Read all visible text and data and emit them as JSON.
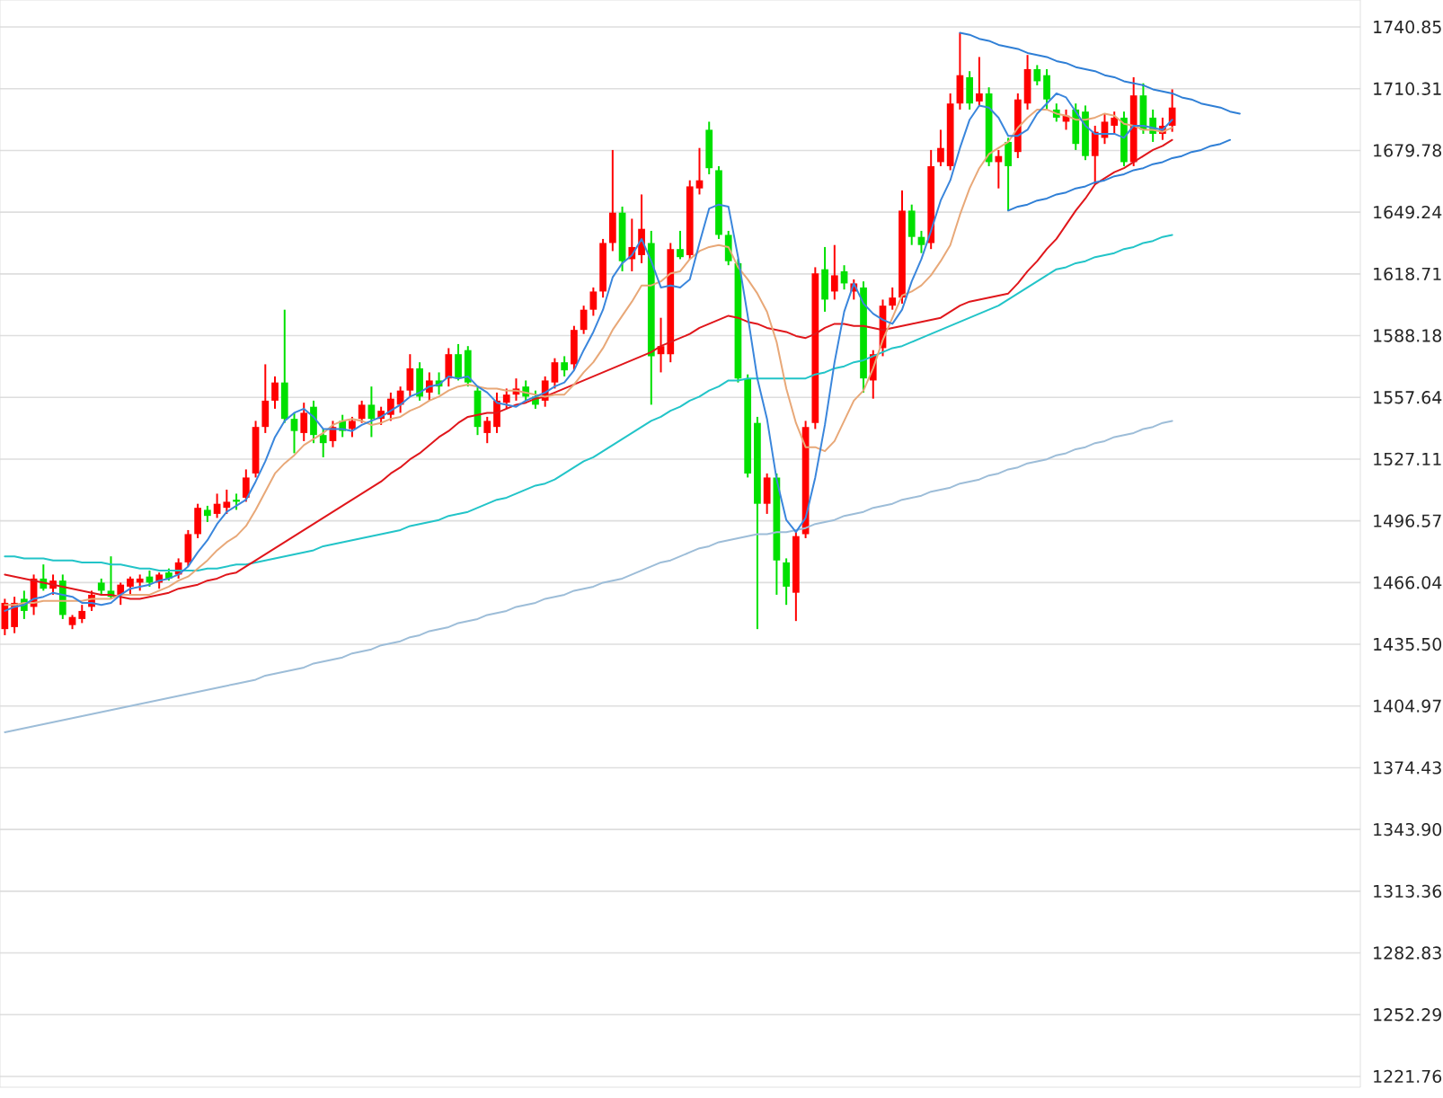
{
  "chart_data": {
    "type": "candlestick",
    "categories": [
      null,
      null,
      null,
      null,
      null,
      null,
      null,
      null,
      null,
      null,
      null,
      null,
      null,
      null,
      null,
      null,
      null,
      null,
      null,
      null,
      null,
      null,
      null,
      null,
      null,
      null,
      null,
      null,
      null,
      null,
      null,
      null,
      null,
      null,
      null,
      null,
      null,
      null,
      null,
      null,
      null,
      null,
      null,
      null,
      null,
      null,
      null,
      null,
      null,
      null,
      null,
      null,
      null,
      null,
      null,
      null,
      null,
      null,
      null,
      null,
      null,
      null,
      null,
      null,
      null,
      null,
      null,
      null,
      null,
      null,
      null,
      null,
      null,
      null,
      null,
      null,
      null,
      null,
      null,
      null,
      null,
      null,
      null,
      null,
      null,
      null,
      null,
      null,
      null,
      null,
      null,
      null,
      null,
      null,
      null,
      null,
      null,
      null,
      null,
      null,
      null,
      null,
      null,
      null,
      null,
      null,
      null,
      null,
      null,
      null,
      null,
      null,
      null,
      null,
      null,
      null,
      null,
      null,
      null,
      null,
      null,
      null,
      null,
      null,
      null,
      null,
      null,
      null,
      null,
      null,
      null,
      null,
      null,
      null,
      null,
      null,
      null,
      null,
      null,
      null,
      null
    ],
    "ohlc": [
      [
        1443,
        1458,
        1440,
        1456
      ],
      [
        1444,
        1459,
        1441,
        1456
      ],
      [
        1458,
        1462,
        1448,
        1452
      ],
      [
        1454,
        1470,
        1450,
        1468
      ],
      [
        1468,
        1475,
        1462,
        1463
      ],
      [
        1463,
        1470,
        1460,
        1467
      ],
      [
        1467,
        1470,
        1448,
        1450
      ],
      [
        1445,
        1450,
        1443,
        1449
      ],
      [
        1448,
        1455,
        1446,
        1452
      ],
      [
        1454,
        1462,
        1452,
        1460
      ],
      [
        1466,
        1468,
        1460,
        1462
      ],
      [
        1462,
        1479,
        1458,
        1459
      ],
      [
        1460,
        1466,
        1455,
        1465
      ],
      [
        1464,
        1469,
        1460,
        1468
      ],
      [
        1466,
        1470,
        1462,
        1468
      ],
      [
        1469,
        1472,
        1464,
        1466
      ],
      [
        1466,
        1471,
        1463,
        1470
      ],
      [
        1471,
        1473,
        1467,
        1468
      ],
      [
        1470,
        1478,
        1468,
        1476
      ],
      [
        1476,
        1492,
        1474,
        1490
      ],
      [
        1490,
        1505,
        1488,
        1503
      ],
      [
        1502,
        1504,
        1496,
        1499
      ],
      [
        1500,
        1510,
        1498,
        1505
      ],
      [
        1503,
        1512,
        1500,
        1506
      ],
      [
        1507,
        1510,
        1502,
        1506
      ],
      [
        1508,
        1522,
        1506,
        1518
      ],
      [
        1520,
        1546,
        1518,
        1543
      ],
      [
        1543,
        1574,
        1540,
        1556
      ],
      [
        1556,
        1568,
        1552,
        1565
      ],
      [
        1565,
        1601,
        1545,
        1547
      ],
      [
        1547,
        1550,
        1530,
        1541
      ],
      [
        1540,
        1555,
        1536,
        1550
      ],
      [
        1553,
        1556,
        1535,
        1539
      ],
      [
        1539,
        1542,
        1528,
        1535
      ],
      [
        1536,
        1546,
        1533,
        1543
      ],
      [
        1546,
        1549,
        1538,
        1541
      ],
      [
        1542,
        1548,
        1538,
        1546
      ],
      [
        1547,
        1556,
        1545,
        1554
      ],
      [
        1554,
        1563,
        1538,
        1547
      ],
      [
        1547,
        1553,
        1544,
        1551
      ],
      [
        1549,
        1560,
        1546,
        1557
      ],
      [
        1554,
        1563,
        1550,
        1561
      ],
      [
        1561,
        1579,
        1558,
        1572
      ],
      [
        1572,
        1575,
        1556,
        1558
      ],
      [
        1560,
        1570,
        1556,
        1566
      ],
      [
        1566,
        1570,
        1559,
        1563
      ],
      [
        1567,
        1582,
        1563,
        1579
      ],
      [
        1579,
        1584,
        1566,
        1567
      ],
      [
        1581,
        1583,
        1563,
        1565
      ],
      [
        1561,
        1563,
        1539,
        1543
      ],
      [
        1540,
        1548,
        1535,
        1546
      ],
      [
        1543,
        1560,
        1540,
        1556
      ],
      [
        1555,
        1562,
        1552,
        1559
      ],
      [
        1559,
        1567,
        1556,
        1562
      ],
      [
        1563,
        1566,
        1556,
        1558
      ],
      [
        1558,
        1561,
        1552,
        1554
      ],
      [
        1556,
        1568,
        1553,
        1566
      ],
      [
        1565,
        1577,
        1562,
        1575
      ],
      [
        1575,
        1578,
        1568,
        1571
      ],
      [
        1574,
        1593,
        1571,
        1591
      ],
      [
        1591,
        1603,
        1589,
        1601
      ],
      [
        1601,
        1612,
        1598,
        1610
      ],
      [
        1610,
        1636,
        1607,
        1634
      ],
      [
        1634,
        1680,
        1630,
        1649
      ],
      [
        1649,
        1652,
        1620,
        1625
      ],
      [
        1626,
        1646,
        1620,
        1632
      ],
      [
        1628,
        1658,
        1624,
        1641
      ],
      [
        1634,
        1640,
        1554,
        1578
      ],
      [
        1579,
        1597,
        1570,
        1583
      ],
      [
        1579,
        1634,
        1575,
        1631
      ],
      [
        1631,
        1640,
        1626,
        1627
      ],
      [
        1628,
        1665,
        1626,
        1662
      ],
      [
        1661,
        1681,
        1658,
        1665
      ],
      [
        1690,
        1694,
        1668,
        1671
      ],
      [
        1670,
        1672,
        1636,
        1638
      ],
      [
        1638,
        1640,
        1623,
        1625
      ],
      [
        1624,
        1626,
        1565,
        1567
      ],
      [
        1567,
        1569,
        1518,
        1520
      ],
      [
        1545,
        1548,
        1443,
        1505
      ],
      [
        1505,
        1520,
        1500,
        1518
      ],
      [
        1518,
        1520,
        1460,
        1477
      ],
      [
        1476,
        1478,
        1455,
        1464
      ],
      [
        1461,
        1492,
        1447,
        1489
      ],
      [
        1490,
        1546,
        1488,
        1543
      ],
      [
        1545,
        1622,
        1542,
        1619
      ],
      [
        1621,
        1632,
        1600,
        1606
      ],
      [
        1610,
        1633,
        1606,
        1618
      ],
      [
        1620,
        1623,
        1611,
        1614
      ],
      [
        1610,
        1616,
        1606,
        1614
      ],
      [
        1612,
        1615,
        1560,
        1567
      ],
      [
        1566,
        1581,
        1557,
        1579
      ],
      [
        1582,
        1606,
        1578,
        1603
      ],
      [
        1603,
        1612,
        1601,
        1607
      ],
      [
        1607,
        1660,
        1604,
        1650
      ],
      [
        1650,
        1653,
        1633,
        1637
      ],
      [
        1637,
        1640,
        1629,
        1633
      ],
      [
        1634,
        1680,
        1631,
        1672
      ],
      [
        1674,
        1690,
        1672,
        1681
      ],
      [
        1672,
        1708,
        1670,
        1703
      ],
      [
        1703,
        1738,
        1700,
        1717
      ],
      [
        1716,
        1719,
        1700,
        1703
      ],
      [
        1704,
        1726,
        1702,
        1708
      ],
      [
        1708,
        1711,
        1672,
        1674
      ],
      [
        1674,
        1680,
        1661,
        1677
      ],
      [
        1684,
        1686,
        1650,
        1672
      ],
      [
        1679,
        1708,
        1676,
        1705
      ],
      [
        1703,
        1727,
        1700,
        1720
      ],
      [
        1720,
        1722,
        1712,
        1714
      ],
      [
        1717,
        1720,
        1700,
        1705
      ],
      [
        1700,
        1703,
        1694,
        1696
      ],
      [
        1694,
        1700,
        1690,
        1697
      ],
      [
        1700,
        1703,
        1680,
        1683
      ],
      [
        1699,
        1702,
        1675,
        1677
      ],
      [
        1677,
        1692,
        1663,
        1689
      ],
      [
        1686,
        1698,
        1683,
        1694
      ],
      [
        1692,
        1699,
        1688,
        1696
      ],
      [
        1696,
        1699,
        1672,
        1674
      ],
      [
        1674,
        1716,
        1672,
        1707
      ],
      [
        1707,
        1713,
        1688,
        1690
      ],
      [
        1696,
        1700,
        1684,
        1688
      ],
      [
        1688,
        1696,
        1685,
        1692
      ],
      [
        1692,
        1710,
        1689,
        1701
      ],
      null,
      null,
      null,
      null,
      null,
      null,
      null,
      null,
      null,
      null,
      null,
      null,
      null,
      null,
      null,
      null,
      null,
      null,
      null
    ],
    "colors": [
      "#ff0000",
      "#ff0000",
      "#00e000",
      "#ff0000",
      "#00e000",
      "#ff0000",
      "#00e000",
      "#ff0000",
      "#ff0000",
      "#ff0000",
      "#00e000",
      "#00e000",
      "#ff0000",
      "#ff0000",
      "#ff0000",
      "#00e000",
      "#ff0000",
      "#00e000",
      "#ff0000",
      "#ff0000",
      "#ff0000",
      "#00e000",
      "#ff0000",
      "#ff0000",
      "#00e000",
      "#ff0000",
      "#ff0000",
      "#ff0000",
      "#ff0000",
      "#00e000",
      "#00e000",
      "#ff0000",
      "#00e000",
      "#00e000",
      "#ff0000",
      "#00e000",
      "#ff0000",
      "#ff0000",
      "#00e000",
      "#ff0000",
      "#ff0000",
      "#ff0000",
      "#ff0000",
      "#00e000",
      "#ff0000",
      "#00e000",
      "#ff0000",
      "#00e000",
      "#00e000",
      "#00e000",
      "#ff0000",
      "#ff0000",
      "#ff0000",
      "#ff0000",
      "#00e000",
      "#00e000",
      "#ff0000",
      "#ff0000",
      "#00e000",
      "#ff0000",
      "#ff0000",
      "#ff0000",
      "#ff0000",
      "#ff0000",
      "#00e000",
      "#ff0000",
      "#ff0000",
      "#00e000",
      "#ff0000",
      "#ff0000",
      "#00e000",
      "#ff0000",
      "#ff0000",
      "#00e000",
      "#00e000",
      "#00e000",
      "#00e000",
      "#00e000",
      "#00e000",
      "#ff0000",
      "#00e000",
      "#00e000",
      "#ff0000",
      "#ff0000",
      "#ff0000",
      "#00e000",
      "#ff0000",
      "#00e000",
      "#ff0000",
      "#00e000",
      "#ff0000",
      "#ff0000",
      "#ff0000",
      "#ff0000",
      "#00e000",
      "#00e000",
      "#ff0000",
      "#ff0000",
      "#ff0000",
      "#ff0000",
      "#00e000",
      "#ff0000",
      "#00e000",
      "#ff0000",
      "#00e000",
      "#ff0000",
      "#ff0000",
      "#00e000",
      "#00e000",
      "#00e000",
      "#ff0000",
      "#00e000",
      "#00e000",
      "#ff0000",
      "#ff0000",
      "#ff0000",
      "#00e000",
      "#ff0000",
      "#00e000",
      "#00e000",
      "#ff0000",
      "#ff0000",
      null,
      null,
      null,
      null,
      null,
      null,
      null,
      null,
      null,
      null,
      null,
      null,
      null,
      null,
      null,
      null,
      null,
      null,
      null
    ],
    "series": [
      {
        "type": "line",
        "color": "#9dbdd8",
        "values": [
          1392,
          1393,
          1394,
          1395,
          1396,
          1397,
          1398,
          1399,
          1400,
          1401,
          1402,
          1403,
          1404,
          1405,
          1406,
          1407,
          1408,
          1409,
          1410,
          1411,
          1412,
          1413,
          1414,
          1415,
          1416,
          1417,
          1418,
          1420,
          1421,
          1422,
          1423,
          1424,
          1426,
          1427,
          1428,
          1429,
          1431,
          1432,
          1433,
          1435,
          1436,
          1437,
          1439,
          1440,
          1442,
          1443,
          1444,
          1446,
          1447,
          1448,
          1450,
          1451,
          1452,
          1454,
          1455,
          1456,
          1458,
          1459,
          1460,
          1462,
          1463,
          1464,
          1466,
          1467,
          1468,
          1470,
          1472,
          1474,
          1476,
          1477,
          1479,
          1481,
          1483,
          1484,
          1486,
          1487,
          1488,
          1489,
          1490,
          1490,
          1491,
          1491,
          1492,
          1493,
          1495,
          1496,
          1497,
          1499,
          1500,
          1501,
          1503,
          1504,
          1505,
          1507,
          1508,
          1509,
          1511,
          1512,
          1513,
          1515,
          1516,
          1517,
          1519,
          1520,
          1522,
          1523,
          1525,
          1526,
          1527,
          1529,
          1530,
          1532,
          1533,
          1535,
          1536,
          1538,
          1539,
          1540,
          1542,
          1543,
          1545,
          1546,
          null,
          null,
          null,
          null,
          null,
          null,
          null,
          null,
          null,
          null,
          null,
          null,
          null,
          null,
          null,
          null,
          null,
          null,
          null
        ]
      },
      {
        "type": "line",
        "color": "#22c4c8",
        "values": [
          1479,
          1479,
          1478,
          1478,
          1478,
          1477,
          1477,
          1477,
          1476,
          1476,
          1476,
          1475,
          1475,
          1474,
          1473,
          1473,
          1472,
          1472,
          1472,
          1472,
          1472,
          1473,
          1473,
          1474,
          1475,
          1475,
          1476,
          1477,
          1478,
          1479,
          1480,
          1481,
          1482,
          1484,
          1485,
          1486,
          1487,
          1488,
          1489,
          1490,
          1491,
          1492,
          1494,
          1495,
          1496,
          1497,
          1499,
          1500,
          1501,
          1503,
          1505,
          1507,
          1508,
          1510,
          1512,
          1514,
          1515,
          1517,
          1520,
          1523,
          1526,
          1528,
          1531,
          1534,
          1537,
          1540,
          1543,
          1546,
          1548,
          1551,
          1553,
          1556,
          1558,
          1561,
          1563,
          1566,
          1566,
          1567,
          1567,
          1567,
          1567,
          1567,
          1567,
          1567,
          1569,
          1570,
          1572,
          1573,
          1575,
          1576,
          1578,
          1580,
          1582,
          1583,
          1585,
          1587,
          1589,
          1591,
          1593,
          1595,
          1597,
          1599,
          1601,
          1603,
          1606,
          1609,
          1612,
          1615,
          1618,
          1621,
          1622,
          1624,
          1625,
          1627,
          1628,
          1629,
          1631,
          1632,
          1634,
          1635,
          1637,
          1638,
          null,
          null,
          null,
          null,
          null,
          null,
          null,
          null,
          null,
          null,
          null,
          null,
          null,
          null,
          null,
          null,
          null,
          null,
          null
        ]
      },
      {
        "type": "line",
        "color": "#e0161b",
        "values": [
          1470,
          1469,
          1468,
          1467,
          1466,
          1465,
          1464,
          1463,
          1462,
          1461,
          1460,
          1460,
          1459,
          1458,
          1458,
          1459,
          1460,
          1461,
          1463,
          1464,
          1465,
          1467,
          1468,
          1470,
          1471,
          1474,
          1477,
          1480,
          1483,
          1486,
          1489,
          1492,
          1495,
          1498,
          1501,
          1504,
          1507,
          1510,
          1513,
          1516,
          1520,
          1523,
          1527,
          1530,
          1534,
          1538,
          1541,
          1545,
          1548,
          1549,
          1550,
          1550,
          1552,
          1554,
          1555,
          1557,
          1558,
          1560,
          1562,
          1564,
          1566,
          1568,
          1570,
          1572,
          1574,
          1576,
          1578,
          1580,
          1583,
          1585,
          1587,
          1589,
          1592,
          1594,
          1596,
          1598,
          1597,
          1595,
          1594,
          1592,
          1591,
          1590,
          1588,
          1587,
          1589,
          1592,
          1594,
          1594,
          1593,
          1593,
          1592,
          1591,
          1592,
          1593,
          1594,
          1595,
          1596,
          1597,
          1600,
          1603,
          1605,
          1606,
          1607,
          1608,
          1609,
          1614,
          1620,
          1625,
          1631,
          1636,
          1643,
          1650,
          1656,
          1663,
          1666,
          1669,
          1671,
          1674,
          1677,
          1680,
          1682,
          1685,
          null,
          null,
          null,
          null,
          null,
          null,
          null,
          null,
          null,
          null,
          null,
          null,
          null,
          null,
          null,
          null,
          null,
          null,
          null
        ]
      },
      {
        "type": "line",
        "color": "#e8a878",
        "values": [
          1455,
          1455,
          1456,
          1456,
          1457,
          1457,
          1457,
          1457,
          1457,
          1458,
          1458,
          1458,
          1460,
          1460,
          1460,
          1460,
          1462,
          1464,
          1467,
          1469,
          1473,
          1477,
          1482,
          1486,
          1489,
          1494,
          1502,
          1511,
          1520,
          1525,
          1529,
          1534,
          1537,
          1540,
          1544,
          1546,
          1547,
          1546,
          1544,
          1545,
          1547,
          1548,
          1551,
          1553,
          1556,
          1558,
          1561,
          1563,
          1564,
          1563,
          1562,
          1562,
          1561,
          1561,
          1560,
          1559,
          1558,
          1559,
          1559,
          1564,
          1570,
          1575,
          1582,
          1591,
          1598,
          1605,
          1613,
          1613,
          1615,
          1619,
          1620,
          1626,
          1630,
          1632,
          1633,
          1632,
          1622,
          1616,
          1609,
          1600,
          1585,
          1562,
          1545,
          1533,
          1533,
          1531,
          1536,
          1546,
          1556,
          1561,
          1572,
          1586,
          1597,
          1608,
          1610,
          1613,
          1618,
          1625,
          1633,
          1648,
          1661,
          1671,
          1678,
          1681,
          1684,
          1691,
          1696,
          1700,
          1700,
          1698,
          1697,
          1695,
          1695,
          1696,
          1698,
          1697,
          1693,
          1692,
          1690,
          1690,
          1689,
          1691,
          null,
          null,
          null,
          null,
          null,
          null,
          null,
          null,
          null,
          null,
          null,
          null,
          null,
          null,
          null,
          null,
          null,
          null,
          null
        ]
      },
      {
        "type": "line",
        "color": "#3a86dc",
        "values": [
          1452,
          1454,
          1455,
          1458,
          1459,
          1461,
          1460,
          1459,
          1456,
          1456,
          1455,
          1456,
          1460,
          1463,
          1464,
          1465,
          1467,
          1468,
          1470,
          1474,
          1481,
          1487,
          1495,
          1501,
          1504,
          1507,
          1516,
          1526,
          1538,
          1546,
          1550,
          1552,
          1548,
          1542,
          1542,
          1542,
          1541,
          1544,
          1546,
          1548,
          1551,
          1554,
          1558,
          1560,
          1563,
          1564,
          1568,
          1567,
          1568,
          1563,
          1560,
          1555,
          1554,
          1553,
          1556,
          1558,
          1560,
          1563,
          1565,
          1571,
          1581,
          1590,
          1601,
          1617,
          1624,
          1628,
          1636,
          1625,
          1612,
          1613,
          1612,
          1616,
          1634,
          1651,
          1653,
          1652,
          1627,
          1598,
          1567,
          1547,
          1517,
          1497,
          1491,
          1498,
          1518,
          1544,
          1575,
          1600,
          1614,
          1604,
          1599,
          1596,
          1594,
          1601,
          1615,
          1626,
          1640,
          1655,
          1665,
          1681,
          1695,
          1702,
          1701,
          1696,
          1687,
          1687,
          1690,
          1698,
          1703,
          1708,
          1706,
          1699,
          1692,
          1688,
          1688,
          1688,
          1686,
          1692,
          1692,
          1691,
          1690,
          1695,
          null,
          null,
          null,
          null,
          null,
          null,
          null,
          null,
          null,
          null,
          null,
          null,
          null,
          null,
          null,
          null,
          null,
          null,
          null
        ]
      },
      {
        "type": "line",
        "color": "#2f7fd6",
        "values": [
          null,
          null,
          null,
          null,
          null,
          null,
          null,
          null,
          null,
          null,
          null,
          null,
          null,
          null,
          null,
          null,
          null,
          null,
          null,
          null,
          null,
          null,
          null,
          null,
          null,
          null,
          null,
          null,
          null,
          null,
          null,
          null,
          null,
          null,
          null,
          null,
          null,
          null,
          null,
          null,
          null,
          null,
          null,
          null,
          null,
          null,
          null,
          null,
          null,
          null,
          null,
          null,
          null,
          null,
          null,
          null,
          null,
          null,
          null,
          null,
          null,
          null,
          null,
          null,
          null,
          null,
          null,
          null,
          null,
          null,
          null,
          null,
          null,
          null,
          null,
          null,
          null,
          null,
          null,
          null,
          null,
          null,
          null,
          null,
          null,
          null,
          null,
          null,
          null,
          null,
          null,
          null,
          null,
          null,
          null,
          null,
          null,
          null,
          null,
          1738,
          1737,
          1735,
          1734,
          1732,
          1731,
          1730,
          1728,
          1727,
          1726,
          1724,
          1723,
          1721,
          1720,
          1719,
          1717,
          1716,
          1714,
          1713,
          1712,
          1710,
          1709,
          1708,
          1706,
          1705,
          1703,
          1702,
          1701,
          1699,
          1698,
          null,
          null,
          null,
          null,
          null,
          null,
          null,
          null,
          null,
          null,
          null,
          null
        ]
      },
      {
        "type": "line",
        "color": "#2f7fd6",
        "values": [
          null,
          null,
          null,
          null,
          null,
          null,
          null,
          null,
          null,
          null,
          null,
          null,
          null,
          null,
          null,
          null,
          null,
          null,
          null,
          null,
          null,
          null,
          null,
          null,
          null,
          null,
          null,
          null,
          null,
          null,
          null,
          null,
          null,
          null,
          null,
          null,
          null,
          null,
          null,
          null,
          null,
          null,
          null,
          null,
          null,
          null,
          null,
          null,
          null,
          null,
          null,
          null,
          null,
          null,
          null,
          null,
          null,
          null,
          null,
          null,
          null,
          null,
          null,
          null,
          null,
          null,
          null,
          null,
          null,
          null,
          null,
          null,
          null,
          null,
          null,
          null,
          null,
          null,
          null,
          null,
          null,
          null,
          null,
          null,
          null,
          null,
          null,
          null,
          null,
          null,
          null,
          null,
          null,
          null,
          null,
          null,
          null,
          null,
          null,
          null,
          null,
          null,
          null,
          null,
          1650,
          1652,
          1653,
          1655,
          1656,
          1658,
          1659,
          1661,
          1662,
          1664,
          1665,
          1667,
          1668,
          1670,
          1671,
          1673,
          1674,
          1676,
          1677,
          1679,
          1680,
          1682,
          1683,
          1685,
          null,
          null,
          null,
          null,
          null,
          null,
          null,
          null,
          null,
          null,
          null,
          null,
          null
        ]
      }
    ],
    "ylim": [
      1216.4,
      1754.2
    ],
    "yticks": [
      1221.76,
      1252.29,
      1282.83,
      1313.36,
      {
        "value": 1343.9,
        "label": "1343.90"
      },
      1374.43,
      1404.97,
      {
        "value": 1435.5,
        "label": "1435.50"
      },
      1466.04,
      1496.57,
      1527.11,
      1557.64,
      1588.18,
      1618.71,
      1649.24,
      1679.78,
      1710.31,
      1740.85
    ],
    "grid": "y",
    "tick_labels": "y"
  }
}
